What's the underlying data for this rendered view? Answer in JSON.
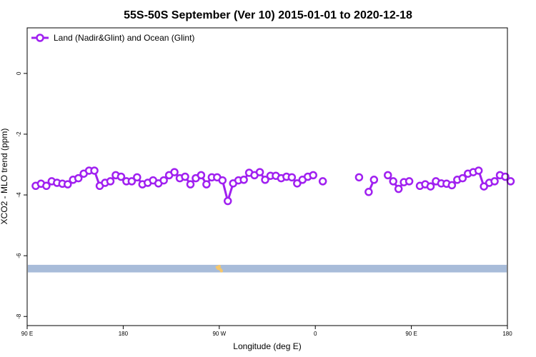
{
  "chart_data": {
    "type": "line",
    "title": "55S-50S September (Ver 10)   2015-01-01 to 2020-12-18",
    "xlabel": "Longitude (deg E)",
    "ylabel": "XCO2 - MLO trend (ppm)",
    "xlim": [
      90,
      540
    ],
    "ylim": [
      -8.3,
      1.5
    ],
    "x_ticks": [
      {
        "value": 90,
        "label": "90 E"
      },
      {
        "value": 180,
        "label": "180"
      },
      {
        "value": 270,
        "label": "90 W"
      },
      {
        "value": 360,
        "label": "0"
      },
      {
        "value": 450,
        "label": "90 E"
      },
      {
        "value": 540,
        "label": "180"
      }
    ],
    "y_ticks": [
      {
        "value": 0,
        "label": "0"
      },
      {
        "value": -2,
        "label": "-2"
      },
      {
        "value": -4,
        "label": "-4"
      },
      {
        "value": -6,
        "label": "-6"
      },
      {
        "value": -8,
        "label": "-8"
      }
    ],
    "grid": false,
    "legend_position": "top-left",
    "series": [
      {
        "name": "Land (Nadir&Glint) and Ocean (Glint)",
        "color": "#a020f0",
        "segments": [
          {
            "x": [
              98,
              103,
              108,
              113,
              118,
              123,
              128,
              133,
              138,
              143,
              148,
              153,
              158,
              163,
              168,
              173,
              178,
              183,
              188,
              193,
              198,
              203,
              208,
              213,
              218,
              223,
              228,
              233,
              238,
              243,
              248,
              253,
              258,
              263,
              268,
              273,
              278,
              283,
              288,
              293,
              298,
              303,
              308,
              313,
              318,
              323,
              328,
              333,
              338,
              343,
              348,
              353,
              358
            ],
            "y": [
              -3.7,
              -3.63,
              -3.7,
              -3.55,
              -3.6,
              -3.63,
              -3.65,
              -3.5,
              -3.45,
              -3.3,
              -3.2,
              -3.2,
              -3.7,
              -3.6,
              -3.55,
              -3.35,
              -3.4,
              -3.55,
              -3.55,
              -3.42,
              -3.65,
              -3.6,
              -3.52,
              -3.62,
              -3.52,
              -3.35,
              -3.25,
              -3.45,
              -3.4,
              -3.65,
              -3.45,
              -3.35,
              -3.65,
              -3.42,
              -3.42,
              -3.52,
              -4.2,
              -3.62,
              -3.52,
              -3.5,
              -3.27,
              -3.35,
              -3.25,
              -3.5,
              -3.37,
              -3.37,
              -3.45,
              -3.4,
              -3.42,
              -3.62,
              -3.5,
              -3.4,
              -3.35
            ]
          },
          {
            "x": [
              367
            ],
            "y": [
              -3.55
            ]
          },
          {
            "x": [
              401
            ],
            "y": [
              -3.42
            ]
          },
          {
            "x": [
              410,
              415
            ],
            "y": [
              -3.9,
              -3.5
            ]
          },
          {
            "x": [
              428,
              433,
              438,
              443,
              448
            ],
            "y": [
              -3.35,
              -3.55,
              -3.8,
              -3.58,
              -3.55
            ]
          },
          {
            "x": [
              458,
              463,
              468,
              473,
              478,
              483,
              488,
              493,
              498,
              503,
              508,
              513,
              518,
              523,
              528,
              533,
              538,
              543
            ],
            "y": [
              -3.7,
              -3.65,
              -3.72,
              -3.55,
              -3.62,
              -3.63,
              -3.68,
              -3.5,
              -3.45,
              -3.3,
              -3.25,
              -3.2,
              -3.72,
              -3.6,
              -3.55,
              -3.35,
              -3.4,
              -3.55
            ]
          }
        ]
      }
    ],
    "band": {
      "y_range": [
        -6.55,
        -6.3
      ],
      "color": "#a8bcd9"
    },
    "band_marks": {
      "x": [
        268,
        269,
        270,
        271,
        272
      ],
      "y": [
        -6.38,
        -6.42,
        -6.35,
        -6.45,
        -6.5
      ],
      "color": "#f5c66a"
    }
  }
}
